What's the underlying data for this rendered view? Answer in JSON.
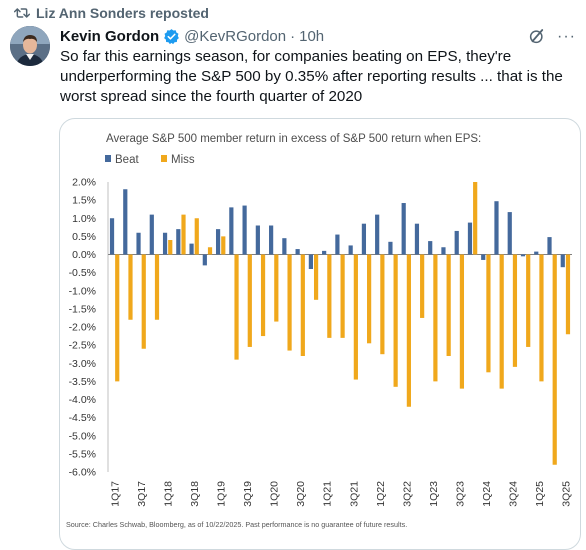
{
  "repost": {
    "label": "Liz Ann Sonders reposted",
    "icon": "repost-icon"
  },
  "author": {
    "name": "Kevin Gordon",
    "handle": "@KevRGordon",
    "separator": "·",
    "time": "10h",
    "verified_color": "#1d9bf0"
  },
  "tweet": {
    "text": "So far this earnings season, for companies beating on EPS, they're underperforming the S&P 500 by 0.35% after reporting results ... that is the worst spread since the fourth quarter of 2020"
  },
  "icons": {
    "grok": "grok-icon",
    "more": "more-icon"
  },
  "chart_data": {
    "type": "bar",
    "title": "Average S&P 500 member return in excess of S&P 500 return when EPS:",
    "source": "Source: Charles Schwab, Bloomberg, as of 10/22/2025. Past performance is no guarantee of future results.",
    "ylim": [
      -6,
      2
    ],
    "y_ticks": [
      "2.0%",
      "1.5%",
      "1.0%",
      "0.5%",
      "0.0%",
      "-0.5%",
      "-1.0%",
      "-1.5%",
      "-2.0%",
      "-2.5%",
      "-3.0%",
      "-3.5%",
      "-4.0%",
      "-4.5%",
      "-5.0%",
      "-5.5%",
      "-6.0%"
    ],
    "x_tick_labels": [
      "1Q17",
      "3Q17",
      "1Q18",
      "3Q18",
      "1Q19",
      "3Q19",
      "1Q20",
      "3Q20",
      "1Q21",
      "3Q21",
      "1Q22",
      "3Q22",
      "1Q23",
      "3Q23",
      "1Q24",
      "3Q24",
      "1Q25",
      "3Q25"
    ],
    "legend_position": "top-left",
    "grid": false,
    "categories": [
      "1Q17",
      "2Q17",
      "3Q17",
      "4Q17",
      "1Q18",
      "2Q18",
      "3Q18",
      "4Q18",
      "1Q19",
      "2Q19",
      "3Q19",
      "4Q19",
      "1Q20",
      "2Q20",
      "3Q20",
      "4Q20",
      "1Q21",
      "2Q21",
      "3Q21",
      "4Q21",
      "1Q22",
      "2Q22",
      "3Q22",
      "4Q22",
      "1Q23",
      "2Q23",
      "3Q23",
      "4Q23",
      "1Q24",
      "2Q24",
      "3Q24",
      "4Q24",
      "1Q25",
      "2Q25",
      "3Q25"
    ],
    "series": [
      {
        "name": "Beat",
        "color": "#44699c",
        "values": [
          1.0,
          1.8,
          0.6,
          1.1,
          0.6,
          0.7,
          0.3,
          -0.3,
          0.7,
          1.3,
          1.35,
          0.8,
          0.8,
          0.45,
          0.15,
          -0.4,
          0.1,
          0.55,
          0.25,
          0.85,
          1.1,
          0.35,
          1.42,
          0.85,
          0.37,
          0.2,
          0.65,
          0.88,
          -0.15,
          1.47,
          1.17,
          -0.05,
          0.08,
          0.48,
          -0.35
        ]
      },
      {
        "name": "Miss",
        "color": "#f0a81c",
        "values": [
          -3.5,
          -1.8,
          -2.6,
          -1.8,
          0.4,
          1.1,
          1.0,
          0.2,
          0.5,
          -2.9,
          -2.55,
          -2.25,
          -1.85,
          -2.65,
          -2.8,
          -1.25,
          -2.3,
          -2.3,
          -3.45,
          -2.45,
          -2.75,
          -3.65,
          -4.2,
          -1.75,
          -3.5,
          -2.8,
          -3.7,
          2.0,
          -3.25,
          -3.7,
          -3.1,
          -2.55,
          -3.5,
          -5.8,
          -2.2
        ]
      }
    ]
  }
}
